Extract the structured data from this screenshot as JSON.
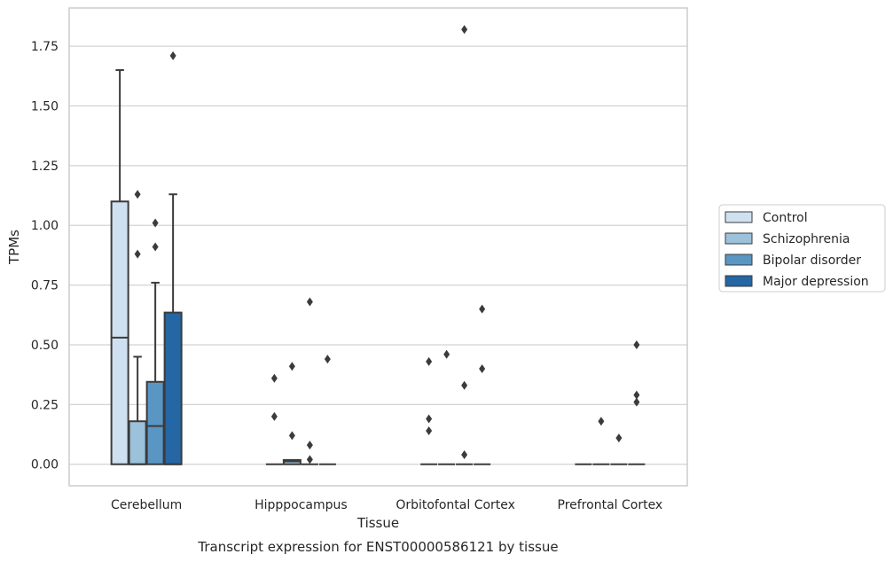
{
  "chart_data": {
    "type": "box",
    "caption": "Transcript expression for ENST00000586121 by tissue",
    "xlabel": "Tissue",
    "ylabel": "TPMs",
    "ylim": [
      -0.09,
      1.91
    ],
    "yticks": [
      "0.00",
      "0.25",
      "0.50",
      "0.75",
      "1.00",
      "1.25",
      "1.50",
      "1.75"
    ],
    "grid": true,
    "legend_position": "right",
    "categories": [
      "Cerebellum",
      "Hipppocampus",
      "Orbitofontal Cortex",
      "Prefrontal Cortex"
    ],
    "series": [
      {
        "name": "Control",
        "color": "#cfe0f0",
        "boxes": [
          {
            "q1": 0.0,
            "median": 0.53,
            "q3": 1.1,
            "lower": 0.0,
            "upper": 1.65,
            "outliers": []
          },
          {
            "q1": 0.0,
            "median": 0.0,
            "q3": 0.0,
            "lower": 0.0,
            "upper": 0.0,
            "outliers": [
              0.36,
              0.2
            ]
          },
          {
            "q1": 0.0,
            "median": 0.0,
            "q3": 0.0,
            "lower": 0.0,
            "upper": 0.0,
            "outliers": [
              0.43,
              0.19,
              0.14
            ]
          },
          {
            "q1": 0.0,
            "median": 0.0,
            "q3": 0.0,
            "lower": 0.0,
            "upper": 0.0,
            "outliers": []
          }
        ]
      },
      {
        "name": "Schizophrenia",
        "color": "#9bc1db",
        "boxes": [
          {
            "q1": 0.0,
            "median": 0.0,
            "q3": 0.18,
            "lower": 0.0,
            "upper": 0.45,
            "outliers": [
              1.13,
              0.88
            ]
          },
          {
            "q1": 0.0,
            "median": 0.012,
            "q3": 0.018,
            "lower": 0.0,
            "upper": 0.018,
            "outliers": [
              0.41,
              0.12
            ]
          },
          {
            "q1": 0.0,
            "median": 0.0,
            "q3": 0.0,
            "lower": 0.0,
            "upper": 0.0,
            "outliers": [
              0.46
            ]
          },
          {
            "q1": 0.0,
            "median": 0.0,
            "q3": 0.0,
            "lower": 0.0,
            "upper": 0.0,
            "outliers": [
              0.18
            ]
          }
        ]
      },
      {
        "name": "Bipolar disorder",
        "color": "#5a96c3",
        "boxes": [
          {
            "q1": 0.0,
            "median": 0.16,
            "q3": 0.345,
            "lower": 0.0,
            "upper": 0.76,
            "outliers": [
              1.01,
              0.91
            ]
          },
          {
            "q1": 0.0,
            "median": 0.0,
            "q3": 0.0,
            "lower": 0.0,
            "upper": 0.0,
            "outliers": [
              0.68,
              0.08,
              0.02
            ]
          },
          {
            "q1": 0.0,
            "median": 0.0,
            "q3": 0.0,
            "lower": 0.0,
            "upper": 0.0,
            "outliers": [
              1.82,
              0.33,
              0.04
            ]
          },
          {
            "q1": 0.0,
            "median": 0.0,
            "q3": 0.0,
            "lower": 0.0,
            "upper": 0.0,
            "outliers": [
              0.11
            ]
          }
        ]
      },
      {
        "name": "Major depression",
        "color": "#2566a4",
        "boxes": [
          {
            "q1": 0.0,
            "median": 0.0,
            "q3": 0.635,
            "lower": 0.0,
            "upper": 1.13,
            "outliers": [
              1.71
            ]
          },
          {
            "q1": 0.0,
            "median": 0.0,
            "q3": 0.0,
            "lower": 0.0,
            "upper": 0.0,
            "outliers": [
              0.44
            ]
          },
          {
            "q1": 0.0,
            "median": 0.0,
            "q3": 0.0,
            "lower": 0.0,
            "upper": 0.0,
            "outliers": [
              0.65,
              0.4
            ]
          },
          {
            "q1": 0.0,
            "median": 0.0,
            "q3": 0.0,
            "lower": 0.0,
            "upper": 0.0,
            "outliers": [
              0.5,
              0.29,
              0.26
            ]
          }
        ]
      }
    ]
  }
}
